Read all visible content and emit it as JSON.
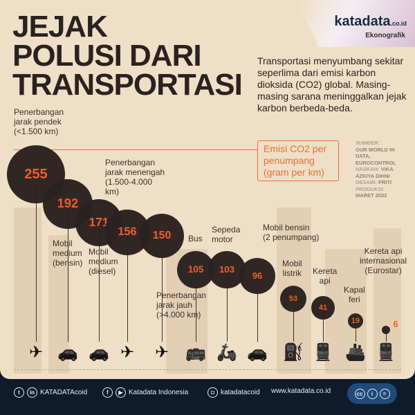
{
  "header": {
    "title_lines": [
      "JEJAK",
      "POLUSI DARI",
      "TRANSPORTASI"
    ],
    "brand": "katadata",
    "brand_suffix": ".co.id",
    "section": "Ekonografik"
  },
  "intro": "Transportasi menyumbang sekitar seperlima dari emisi karbon dioksida (CO2) global. Masing-masing sarana meninggalkan jejak karbon berbeda-beda.",
  "legend": {
    "line1": "Emisi CO2 per",
    "line2": "penumpang",
    "line3": "(gram per km)"
  },
  "credits": {
    "source_label": "SUMBER:",
    "source": "OUR WORLD IN DATA, EUROCONTROL",
    "writer_label": "NASKAH:",
    "writer": "VIKA AZKIYA DIHNI",
    "design_label": "DESAIN:",
    "design": "PRITI",
    "prod_label": "PRODUKSI:",
    "prod": "MARET 2022"
  },
  "chart_data": {
    "type": "scatter",
    "unit": "gram per km",
    "categories": [
      "Penerbangan jarak pendek (<1.500 km)",
      "Mobil medium (bensin)",
      "Mobil medium (diesel)",
      "Penerbangan jarak menengah (1.500-4.000 km)",
      "Penerbangan jarak jauh (>4.000 km)",
      "Bus",
      "Sepeda motor",
      "Mobil bensin (2 penumpang)",
      "Mobil listrik",
      "Kereta api",
      "Kapal feri",
      "Kereta api internasional (Eurostar)"
    ],
    "labels": [
      "Penerbangan\njarak pendek\n(<1.500 km)",
      "Mobil\nmedium\n(bensin)",
      "Mobil\nmedium\n(diesel)",
      "Penerbangan\njarak menengah\n(1.500-4.000\nkm)",
      "Penerbangan\njarak jauh\n(>4.000 km)",
      "Bus",
      "Sepeda\nmotor",
      "Mobil bensin\n(2 penumpang)",
      "Mobil\nlistrik",
      "Kereta\napi",
      "Kapal\nferi",
      "Kereta api\ninternasional\n(Eurostar)"
    ],
    "values": [
      255,
      192,
      171,
      156,
      150,
      105,
      103,
      96,
      53,
      41,
      19,
      6
    ],
    "icons": [
      "airplane-icon",
      "car-icon",
      "car-icon",
      "airplane-icon",
      "airplane-icon",
      "bus-icon",
      "scooter-icon",
      "car-icon",
      "ev-charger-icon",
      "train-icon",
      "ship-icon",
      "train-icon"
    ],
    "bubble_color": "#2a2220",
    "value_color": "#f15a24"
  },
  "footer": {
    "social1": "KATADATAcoid",
    "social2": "Katadata Indonesia",
    "social3": "katadatacoid",
    "website": "www.katadata.co.id"
  }
}
